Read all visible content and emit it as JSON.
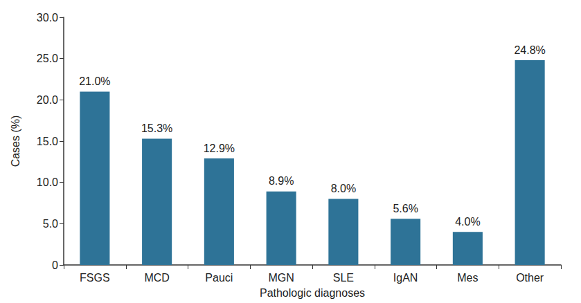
{
  "chart_data": {
    "type": "bar",
    "x_label": "Pathologic diagnoses",
    "y_label": "Cases (%)",
    "categories": [
      "FSGS",
      "MCD",
      "Pauci",
      "MGN",
      "SLE",
      "IgAN",
      "Mes",
      "Other"
    ],
    "values": [
      21.0,
      15.3,
      12.9,
      8.9,
      8.0,
      5.6,
      4.0,
      24.8
    ],
    "value_labels": [
      "21.0%",
      "15.3%",
      "12.9%",
      "8.9%",
      "8.0%",
      "5.6%",
      "4.0%",
      "24.8%"
    ],
    "color": "#2e7397",
    "ylim": [
      0,
      30
    ],
    "yticks": [
      0,
      {
        "value": 5,
        "label": "5.0"
      },
      {
        "value": 10,
        "label": "10.0"
      },
      {
        "value": 15,
        "label": "15.0"
      },
      {
        "value": 20,
        "label": "20.0"
      },
      {
        "value": 25,
        "label": "25.0"
      },
      {
        "value": 30,
        "label": "30.0"
      }
    ],
    "grid": false,
    "data_labels": true
  }
}
